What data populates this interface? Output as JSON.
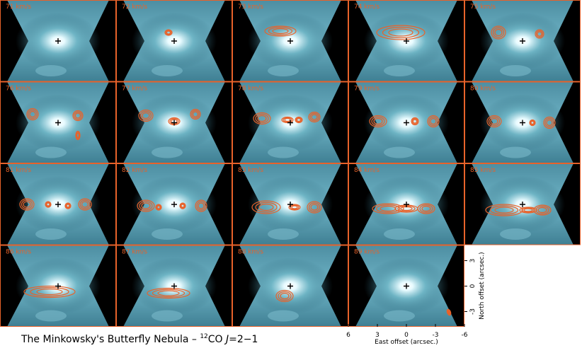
{
  "panels": [
    {
      "label": "71 km/s"
    },
    {
      "label": "72 km/s"
    },
    {
      "label": "73 km/s"
    },
    {
      "label": "74 km/s"
    },
    {
      "label": "75 km/s"
    },
    {
      "label": "76 km/s"
    },
    {
      "label": "77 km/s"
    },
    {
      "label": "78 km/s"
    },
    {
      "label": "79 km/s"
    },
    {
      "label": "80 km/s"
    },
    {
      "label": "81 km/s"
    },
    {
      "label": "82 km/s"
    },
    {
      "label": "83 km/s"
    },
    {
      "label": "84 km/s"
    },
    {
      "label": "85 km/s"
    },
    {
      "label": "86 km/s"
    },
    {
      "label": "87 km/s"
    },
    {
      "label": "88 km/s"
    },
    {
      "label": "89 km/s"
    }
  ],
  "caption": {
    "text": "The Minkowsky's Butterfly Nebula  –  ",
    "isotope": "12",
    "molecule": "CO ",
    "quantum": "J",
    "transition": "=2−1"
  },
  "x_axis": {
    "label": "East offset (arcsec.)",
    "ticks": [
      "6",
      "3",
      "0",
      "-3",
      "-6"
    ]
  },
  "y_axis": {
    "label": "North offset (arcsec.)",
    "ticks": [
      "3",
      "0",
      "-3"
    ]
  }
}
